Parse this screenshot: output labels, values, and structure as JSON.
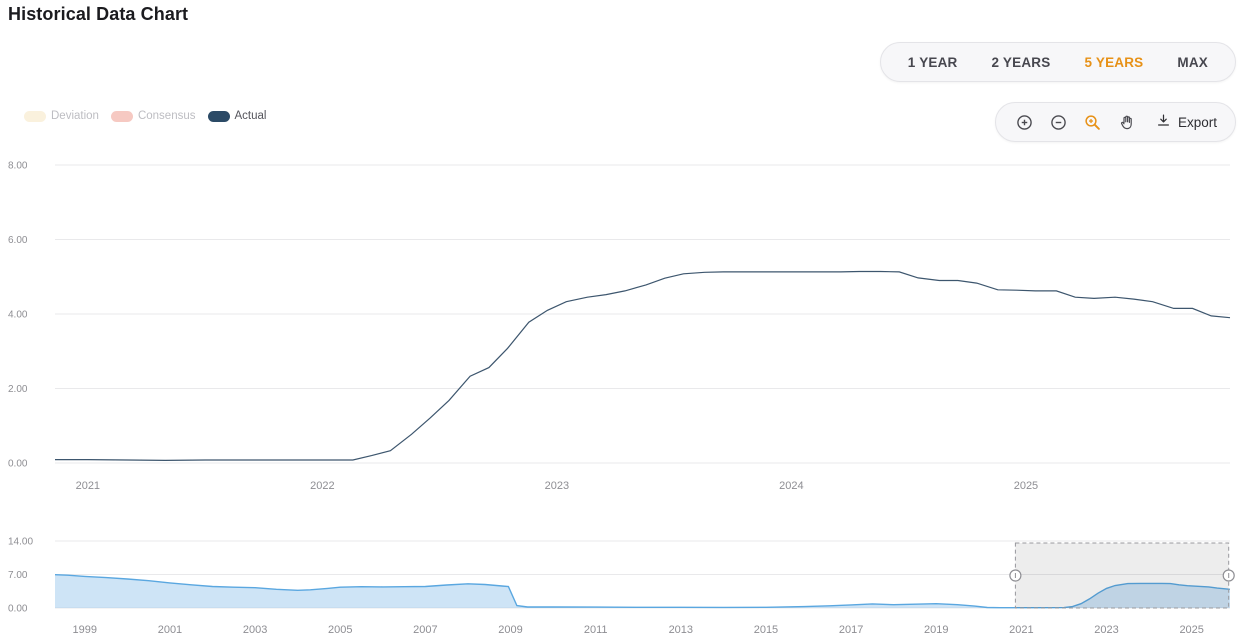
{
  "page": {
    "title": "Historical Data Chart"
  },
  "range_selector": {
    "buttons": [
      {
        "label": "1 YEAR",
        "active": false
      },
      {
        "label": "2 YEARS",
        "active": false
      },
      {
        "label": "5 YEARS",
        "active": true
      },
      {
        "label": "MAX",
        "active": false
      }
    ],
    "active_color": "#e79117"
  },
  "toolbar": {
    "buttons": [
      {
        "name": "zoom-in",
        "active": false
      },
      {
        "name": "zoom-out",
        "active": false
      },
      {
        "name": "selection-zoom",
        "active": true
      },
      {
        "name": "pan",
        "active": false
      }
    ],
    "export_label": "Export",
    "active_color": "#e79117"
  },
  "legend": {
    "items": [
      {
        "label": "Deviation",
        "color": "#faf1dd",
        "muted": true
      },
      {
        "label": "Consensus",
        "color": "#f6c9c2",
        "muted": true
      },
      {
        "label": "Actual",
        "color": "#2b4a66",
        "muted": false
      }
    ]
  },
  "chart_data": [
    {
      "type": "line",
      "name": "main-chart",
      "title": "",
      "xlabel": "",
      "ylabel": "",
      "xlim": [
        2020.86,
        2025.87
      ],
      "ylim": [
        0,
        8
      ],
      "grid": "horizontal",
      "yticks": [
        {
          "value": 0,
          "label": "0.00"
        },
        {
          "value": 2,
          "label": "2.00"
        },
        {
          "value": 4,
          "label": "4.00"
        },
        {
          "value": 6,
          "label": "6.00"
        },
        {
          "value": 8,
          "label": "8.00"
        }
      ],
      "xticks": [
        {
          "value": 2021,
          "label": "2021"
        },
        {
          "value": 2022,
          "label": "2022"
        },
        {
          "value": 2023,
          "label": "2023"
        },
        {
          "value": 2024,
          "label": "2024"
        },
        {
          "value": 2025,
          "label": "2025"
        }
      ],
      "series": [
        {
          "name": "Actual",
          "color": "#3d566e",
          "x": [
            2020.86,
            2021.0,
            2021.17,
            2021.33,
            2021.5,
            2021.67,
            2021.83,
            2022.0,
            2022.13,
            2022.21,
            2022.29,
            2022.38,
            2022.46,
            2022.54,
            2022.63,
            2022.71,
            2022.79,
            2022.88,
            2022.96,
            2023.04,
            2023.13,
            2023.21,
            2023.29,
            2023.38,
            2023.46,
            2023.54,
            2023.63,
            2023.71,
            2023.79,
            2023.88,
            2023.96,
            2024.04,
            2024.13,
            2024.21,
            2024.29,
            2024.38,
            2024.46,
            2024.54,
            2024.63,
            2024.71,
            2024.79,
            2024.88,
            2024.96,
            2025.04,
            2025.13,
            2025.21,
            2025.29,
            2025.38,
            2025.46,
            2025.54,
            2025.63,
            2025.71,
            2025.79,
            2025.87
          ],
          "y": [
            0.09,
            0.09,
            0.08,
            0.07,
            0.08,
            0.08,
            0.08,
            0.08,
            0.08,
            0.2,
            0.33,
            0.77,
            1.21,
            1.68,
            2.33,
            2.56,
            3.08,
            3.78,
            4.1,
            4.33,
            4.45,
            4.52,
            4.62,
            4.78,
            4.96,
            5.08,
            5.12,
            5.13,
            5.13,
            5.13,
            5.13,
            5.13,
            5.13,
            5.13,
            5.14,
            5.14,
            5.13,
            4.97,
            4.9,
            4.9,
            4.83,
            4.65,
            4.64,
            4.62,
            4.62,
            4.45,
            4.42,
            4.45,
            4.4,
            4.33,
            4.15,
            4.15,
            3.95,
            3.9
          ]
        }
      ]
    },
    {
      "type": "area",
      "name": "range-navigator",
      "xlim": [
        1998.3,
        2025.9
      ],
      "ylim": [
        0,
        14
      ],
      "yticks": [
        {
          "value": 0,
          "label": "0.00"
        },
        {
          "value": 7,
          "label": "7.00"
        },
        {
          "value": 14,
          "label": "14.00"
        }
      ],
      "xticks": [
        {
          "value": 1999,
          "label": "1999"
        },
        {
          "value": 2001,
          "label": "2001"
        },
        {
          "value": 2003,
          "label": "2003"
        },
        {
          "value": 2005,
          "label": "2005"
        },
        {
          "value": 2007,
          "label": "2007"
        },
        {
          "value": 2009,
          "label": "2009"
        },
        {
          "value": 2011,
          "label": "2011"
        },
        {
          "value": 2013,
          "label": "2013"
        },
        {
          "value": 2015,
          "label": "2015"
        },
        {
          "value": 2017,
          "label": "2017"
        },
        {
          "value": 2019,
          "label": "2019"
        },
        {
          "value": 2021,
          "label": "2021"
        },
        {
          "value": 2023,
          "label": "2023"
        },
        {
          "value": 2025,
          "label": "2025"
        }
      ],
      "selection": {
        "from": 2020.86,
        "to": 2025.87
      },
      "series": [
        {
          "name": "Actual",
          "color": "#5aa7e0",
          "fill_color": "rgba(125,185,232,0.38)",
          "x": [
            1998.3,
            1998.6,
            1999.0,
            1999.5,
            2000.0,
            2000.5,
            2001.0,
            2001.5,
            2002.0,
            2002.5,
            2003.0,
            2003.5,
            2004.0,
            2004.3,
            2004.7,
            2005.0,
            2005.5,
            2006.0,
            2006.5,
            2007.0,
            2007.5,
            2008.0,
            2008.4,
            2008.8,
            2008.95,
            2009.15,
            2009.4,
            2010.0,
            2011.0,
            2012.0,
            2013.0,
            2014.0,
            2015.0,
            2015.9,
            2016.5,
            2017.0,
            2017.5,
            2018.0,
            2018.5,
            2019.0,
            2019.5,
            2019.9,
            2020.2,
            2020.5,
            2021.0,
            2021.5,
            2022.0,
            2022.2,
            2022.4,
            2022.6,
            2022.8,
            2023.0,
            2023.2,
            2023.5,
            2023.8,
            2024.0,
            2024.3,
            2024.5,
            2024.7,
            2024.9,
            2025.1,
            2025.4,
            2025.6,
            2025.9
          ],
          "y": [
            6.95,
            6.85,
            6.6,
            6.35,
            6.05,
            5.7,
            5.25,
            4.85,
            4.5,
            4.35,
            4.25,
            3.9,
            3.7,
            3.8,
            4.1,
            4.35,
            4.45,
            4.4,
            4.45,
            4.5,
            4.8,
            5.05,
            4.9,
            4.6,
            4.5,
            0.5,
            0.2,
            0.2,
            0.18,
            0.15,
            0.15,
            0.12,
            0.15,
            0.3,
            0.45,
            0.65,
            0.85,
            0.7,
            0.8,
            0.9,
            0.7,
            0.4,
            0.1,
            0.06,
            0.07,
            0.07,
            0.08,
            0.3,
            0.9,
            1.9,
            3.1,
            4.1,
            4.7,
            5.1,
            5.13,
            5.13,
            5.13,
            5.1,
            4.85,
            4.65,
            4.55,
            4.4,
            4.15,
            3.9
          ]
        }
      ]
    }
  ]
}
